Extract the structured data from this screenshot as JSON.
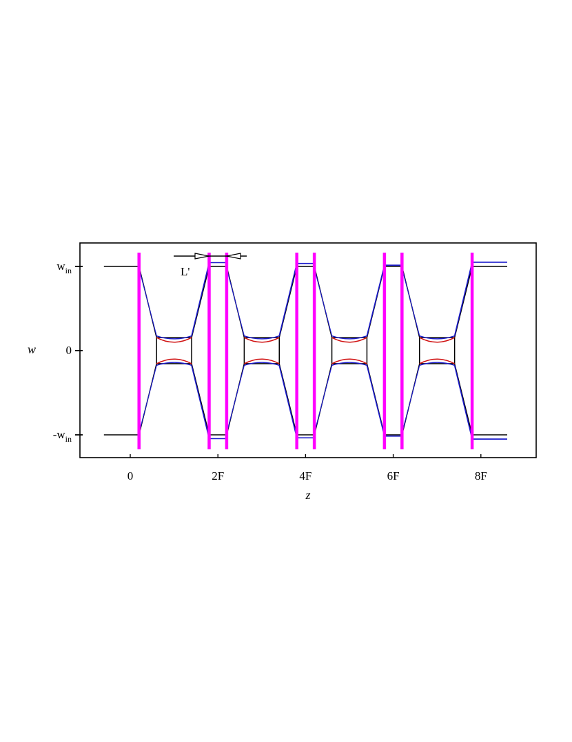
{
  "chart_data": {
    "type": "line",
    "xlabel": "z",
    "ylabel": "w",
    "x_ticks": [
      {
        "label": "0",
        "value": 0
      },
      {
        "label": "2F",
        "value": 2
      },
      {
        "label": "4F",
        "value": 4
      },
      {
        "label": "6F",
        "value": 6
      },
      {
        "label": "8F",
        "value": 8
      }
    ],
    "y_ticks": [
      {
        "label": "w",
        "sub": "in",
        "value": 1,
        "sign": ""
      },
      {
        "label": "0",
        "value": 0
      },
      {
        "label": "w",
        "sub": "in",
        "value": -1,
        "sign": "-"
      }
    ],
    "xlim": [
      -1.12,
      9.27
    ],
    "ylim": [
      -1.28,
      1.27
    ],
    "annotation": {
      "label": "L'"
    },
    "colors": {
      "lens": "#ff00ff",
      "ray_paraxial": "#000000",
      "ray_red": "#d01010",
      "ray_blue": "#1a1acc"
    },
    "lens_positions": [
      0.2,
      1.8,
      2.2,
      3.8,
      4.2,
      5.8,
      6.2,
      7.8
    ]
  }
}
